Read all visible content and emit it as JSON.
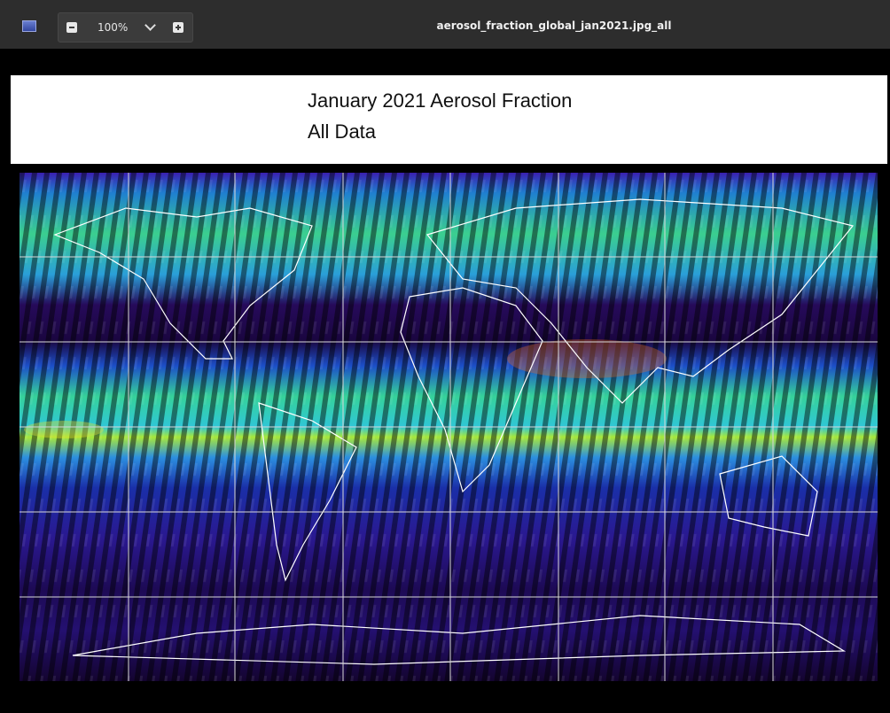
{
  "toolbar": {
    "zoom": "100%",
    "filename": "aerosol_fraction_global_jan2021.jpg_all"
  },
  "image": {
    "title_line_1": "January 2021 Aerosol Fraction",
    "title_line_2": "All Data"
  }
}
